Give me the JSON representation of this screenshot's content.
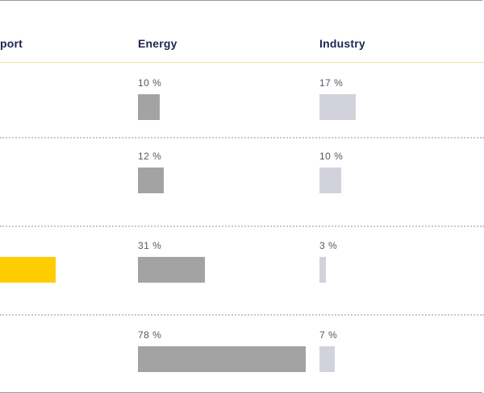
{
  "columns": {
    "transport": "port",
    "energy": "Energy",
    "industry": "Industry"
  },
  "colors": {
    "transport": "#ffcc00",
    "energy": "#a3a3a3",
    "industry": "#d2d2dc",
    "header_text": "#1f2550",
    "header_rule": "#f5e29a"
  },
  "chart_data": {
    "type": "bar",
    "series": [
      {
        "name": "Energy",
        "values": [
          10,
          12,
          31,
          78
        ],
        "labels": [
          "10 %",
          "12 %",
          "31 %",
          "78 %"
        ]
      },
      {
        "name": "Industry",
        "values": [
          17,
          10,
          3,
          7
        ],
        "labels": [
          "17 %",
          "10 %",
          "3 %",
          "7 %"
        ]
      }
    ],
    "units": "%",
    "partial_transport_bar_row": 3
  }
}
